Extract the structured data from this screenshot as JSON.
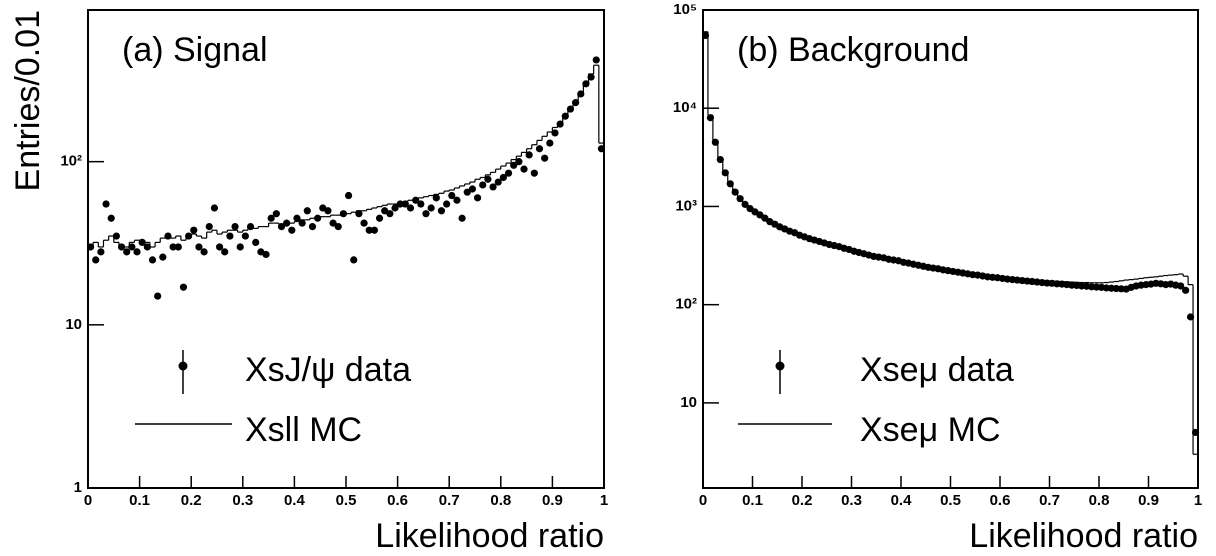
{
  "chart_data": [
    {
      "type": "histogram",
      "title": "(a) Signal",
      "xlabel": "Likelihood ratio",
      "ylabel": "Entries/0.01",
      "log_y": true,
      "xlim": [
        0,
        1
      ],
      "xticks": [
        0,
        0.1,
        0.2,
        0.3,
        0.4,
        0.5,
        0.6,
        0.7,
        0.8,
        0.9,
        1
      ],
      "ylim": [
        1,
        850
      ],
      "yticks": [
        1,
        10,
        {
          "value": 100,
          "label": "10²"
        }
      ],
      "bins": [
        0,
        0.01,
        0.02,
        0.03,
        0.04,
        0.05,
        0.06,
        0.07,
        0.08,
        0.09,
        0.1,
        0.11,
        0.12,
        0.13,
        0.14,
        0.15,
        0.16,
        0.17,
        0.18,
        0.19,
        0.2,
        0.21,
        0.22,
        0.23,
        0.24,
        0.25,
        0.26,
        0.27,
        0.28,
        0.29,
        0.3,
        0.31,
        0.32,
        0.33,
        0.34,
        0.35,
        0.36,
        0.37,
        0.38,
        0.39,
        0.4,
        0.41,
        0.42,
        0.43,
        0.44,
        0.45,
        0.46,
        0.47,
        0.48,
        0.49,
        0.5,
        0.51,
        0.52,
        0.53,
        0.54,
        0.55,
        0.56,
        0.57,
        0.58,
        0.59,
        0.6,
        0.61,
        0.62,
        0.63,
        0.64,
        0.65,
        0.66,
        0.67,
        0.68,
        0.69,
        0.7,
        0.71,
        0.72,
        0.73,
        0.74,
        0.75,
        0.76,
        0.77,
        0.78,
        0.79,
        0.8,
        0.81,
        0.82,
        0.83,
        0.84,
        0.85,
        0.86,
        0.87,
        0.88,
        0.89,
        0.9,
        0.91,
        0.92,
        0.93,
        0.94,
        0.95,
        0.96,
        0.97,
        0.98,
        0.99,
        1
      ],
      "series": [
        {
          "name": "XsJ/ψ data",
          "style": "points",
          "color": "#000000",
          "values": [
            30,
            25,
            28,
            55,
            45,
            35,
            30,
            28,
            30,
            28,
            32,
            30,
            25,
            15,
            26,
            35,
            30,
            30,
            17,
            35,
            38,
            30,
            28,
            40,
            52,
            30,
            28,
            35,
            40,
            30,
            35,
            40,
            32,
            28,
            27,
            45,
            48,
            40,
            42,
            38,
            45,
            42,
            50,
            40,
            45,
            52,
            50,
            42,
            40,
            48,
            62,
            25,
            48,
            42,
            38,
            38,
            45,
            50,
            48,
            52,
            55,
            55,
            52,
            58,
            55,
            48,
            52,
            60,
            50,
            55,
            62,
            58,
            45,
            65,
            68,
            60,
            72,
            78,
            70,
            75,
            80,
            85,
            95,
            100,
            90,
            110,
            85,
            120,
            105,
            130,
            150,
            170,
            190,
            210,
            230,
            260,
            300,
            330,
            420,
            120
          ]
        },
        {
          "name": "Xsll  MC",
          "style": "step",
          "color": "#000000",
          "values": [
            30,
            32,
            30,
            33,
            35,
            32,
            30,
            30,
            32,
            33,
            33,
            32,
            30,
            32,
            34,
            35,
            34,
            35,
            33,
            35,
            36,
            35,
            34,
            37,
            38,
            36,
            37,
            38,
            38,
            37,
            38,
            40,
            39,
            40,
            40,
            42,
            42,
            41,
            43,
            42,
            43,
            44,
            44,
            45,
            45,
            46,
            46,
            47,
            47,
            48,
            48,
            49,
            50,
            50,
            51,
            52,
            53,
            54,
            55,
            55,
            56,
            57,
            58,
            59,
            60,
            61,
            62,
            63,
            64,
            66,
            67,
            69,
            71,
            73,
            75,
            78,
            80,
            83,
            86,
            90,
            94,
            98,
            103,
            108,
            114,
            120,
            127,
            135,
            143,
            152,
            162,
            175,
            190,
            210,
            235,
            265,
            300,
            345,
            390,
            130
          ]
        }
      ]
    },
    {
      "type": "histogram",
      "title": "(b) Background",
      "xlabel": "Likelihood ratio",
      "log_y": true,
      "xlim": [
        0,
        1
      ],
      "xticks": [
        0,
        0.1,
        0.2,
        0.3,
        0.4,
        0.5,
        0.6,
        0.7,
        0.8,
        0.9,
        1
      ],
      "ylim": [
        1.36,
        100000
      ],
      "yticks": [
        10,
        {
          "value": 100,
          "label": "10²"
        },
        {
          "value": 1000,
          "label": "10³"
        },
        {
          "value": 10000,
          "label": "10⁴"
        },
        {
          "value": 100000,
          "label": "10⁵"
        }
      ],
      "bins": [
        0,
        0.01,
        0.02,
        0.03,
        0.04,
        0.05,
        0.06,
        0.07,
        0.08,
        0.09,
        0.1,
        0.11,
        0.12,
        0.13,
        0.14,
        0.15,
        0.16,
        0.17,
        0.18,
        0.19,
        0.2,
        0.21,
        0.22,
        0.23,
        0.24,
        0.25,
        0.26,
        0.27,
        0.28,
        0.29,
        0.3,
        0.31,
        0.32,
        0.33,
        0.34,
        0.35,
        0.36,
        0.37,
        0.38,
        0.39,
        0.4,
        0.41,
        0.42,
        0.43,
        0.44,
        0.45,
        0.46,
        0.47,
        0.48,
        0.49,
        0.5,
        0.51,
        0.52,
        0.53,
        0.54,
        0.55,
        0.56,
        0.57,
        0.58,
        0.59,
        0.6,
        0.61,
        0.62,
        0.63,
        0.64,
        0.65,
        0.66,
        0.67,
        0.68,
        0.69,
        0.7,
        0.71,
        0.72,
        0.73,
        0.74,
        0.75,
        0.76,
        0.77,
        0.78,
        0.79,
        0.8,
        0.81,
        0.82,
        0.83,
        0.84,
        0.85,
        0.86,
        0.87,
        0.88,
        0.89,
        0.9,
        0.91,
        0.92,
        0.93,
        0.94,
        0.95,
        0.96,
        0.97,
        0.98,
        0.99,
        1
      ],
      "series": [
        {
          "name": "Xseμ  data",
          "style": "points",
          "color": "#000000",
          "values": [
            55000,
            8000,
            4500,
            3000,
            2200,
            1700,
            1400,
            1200,
            1050,
            950,
            880,
            820,
            760,
            700,
            660,
            620,
            590,
            560,
            540,
            510,
            490,
            470,
            455,
            440,
            425,
            410,
            400,
            390,
            375,
            365,
            350,
            340,
            330,
            320,
            310,
            305,
            300,
            290,
            285,
            280,
            270,
            265,
            258,
            252,
            246,
            240,
            236,
            232,
            226,
            222,
            218,
            214,
            210,
            206,
            202,
            200,
            196,
            192,
            190,
            188,
            185,
            182,
            180,
            178,
            176,
            174,
            172,
            170,
            168,
            166,
            165,
            163,
            162,
            160,
            158,
            157,
            155,
            154,
            152,
            151,
            150,
            148,
            147,
            146,
            145,
            144,
            150,
            155,
            158,
            160,
            162,
            165,
            163,
            160,
            162,
            158,
            155,
            140,
            75,
            5
          ]
        },
        {
          "name": "Xseμ  MC",
          "style": "step",
          "color": "#000000",
          "values": [
            60000,
            8500,
            4600,
            3050,
            2250,
            1750,
            1420,
            1220,
            1070,
            960,
            890,
            825,
            765,
            705,
            665,
            625,
            595,
            565,
            545,
            515,
            495,
            475,
            460,
            445,
            430,
            415,
            405,
            395,
            380,
            370,
            355,
            345,
            335,
            325,
            315,
            308,
            302,
            295,
            288,
            282,
            275,
            268,
            262,
            256,
            250,
            245,
            240,
            235,
            230,
            226,
            222,
            218,
            214,
            210,
            207,
            204,
            200,
            197,
            195,
            192,
            190,
            188,
            186,
            184,
            182,
            180,
            178,
            177,
            176,
            175,
            174,
            173,
            172,
            171,
            170,
            169,
            168,
            168,
            167,
            167,
            167,
            168,
            170,
            172,
            175,
            178,
            180,
            182,
            185,
            188,
            190,
            192,
            195,
            198,
            200,
            202,
            205,
            195,
            160,
            3
          ]
        }
      ]
    }
  ]
}
